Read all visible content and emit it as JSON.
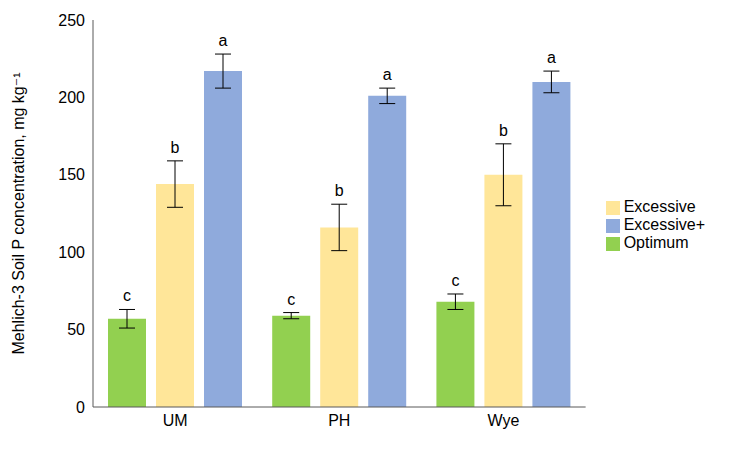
{
  "chart_data": {
    "type": "bar",
    "y_label": "Mehlich-3 Soil P concentration, mg kg⁻¹",
    "categories": [
      "UM",
      "PH",
      "Wye"
    ],
    "series": [
      {
        "name": "Optimum",
        "color": "#92d050",
        "values": [
          57,
          59,
          68
        ],
        "errors": [
          6,
          2,
          5
        ],
        "letters": [
          "c",
          "c",
          "c"
        ]
      },
      {
        "name": "Excessive",
        "color": "#ffe699",
        "values": [
          144,
          116,
          150
        ],
        "errors": [
          15,
          15,
          20
        ],
        "letters": [
          "b",
          "b",
          "b"
        ]
      },
      {
        "name": "Excessive+",
        "color": "#8faadc",
        "values": [
          217,
          201,
          210
        ],
        "errors": [
          11,
          5,
          7
        ],
        "letters": [
          "a",
          "a",
          "a"
        ]
      }
    ],
    "ylim": [
      0,
      250
    ],
    "yticks": [
      0,
      50,
      100,
      150,
      200,
      250
    ],
    "grid": false,
    "legend": "right"
  }
}
